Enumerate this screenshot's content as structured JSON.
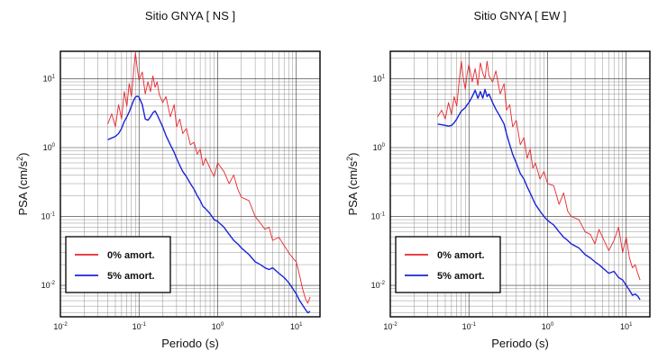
{
  "chart_data": [
    {
      "type": "line",
      "title": "Sitio GNYA [ NS ]",
      "xlabel": "Periodo (s)",
      "ylabel": "PSA (cm/s",
      "ylabel_sup": "2",
      "ylabel_end": ")",
      "x_scale": "log",
      "y_scale": "log",
      "xlim": [
        0.01,
        20
      ],
      "ylim": [
        0.0035,
        25
      ],
      "x_ticks": [
        {
          "base": "10",
          "exp": "-2",
          "value": 0.01
        },
        {
          "base": "10",
          "exp": "-1",
          "value": 0.1
        },
        {
          "base": "10",
          "exp": "0",
          "value": 1
        },
        {
          "base": "10",
          "exp": "1",
          "value": 10
        }
      ],
      "y_ticks": [
        {
          "base": "10",
          "exp": "-2",
          "value": 0.01
        },
        {
          "base": "10",
          "exp": "-1",
          "value": 0.1
        },
        {
          "base": "10",
          "exp": "0",
          "value": 1
        },
        {
          "base": "10",
          "exp": "1",
          "value": 10
        }
      ],
      "grid": true,
      "legend_position": "bottom-left",
      "series": [
        {
          "name": "0% amort.",
          "color": "#e8262b",
          "x": [
            0.04,
            0.045,
            0.05,
            0.055,
            0.06,
            0.065,
            0.07,
            0.075,
            0.08,
            0.085,
            0.09,
            0.095,
            0.1,
            0.11,
            0.12,
            0.13,
            0.14,
            0.15,
            0.16,
            0.17,
            0.18,
            0.2,
            0.22,
            0.25,
            0.28,
            0.3,
            0.33,
            0.36,
            0.4,
            0.45,
            0.5,
            0.55,
            0.6,
            0.65,
            0.7,
            0.8,
            0.9,
            1.0,
            1.2,
            1.4,
            1.6,
            1.8,
            2.0,
            2.5,
            3.0,
            3.5,
            4.0,
            4.5,
            5.0,
            6.0,
            7.0,
            8.0,
            9.0,
            10.0,
            11.0,
            12.0,
            13.0,
            14.0,
            15.0
          ],
          "y": [
            2.2,
            3.1,
            2.0,
            4.2,
            2.6,
            6.5,
            4.0,
            8.5,
            5.5,
            12.0,
            24.0,
            14.0,
            9.5,
            12.5,
            6.0,
            9.0,
            6.5,
            11.0,
            7.5,
            9.0,
            6.0,
            4.5,
            5.5,
            2.8,
            4.2,
            2.0,
            2.6,
            1.6,
            1.9,
            1.1,
            1.2,
            0.8,
            0.95,
            0.55,
            0.7,
            0.5,
            0.38,
            0.6,
            0.45,
            0.3,
            0.4,
            0.25,
            0.19,
            0.17,
            0.1,
            0.08,
            0.065,
            0.07,
            0.045,
            0.05,
            0.038,
            0.03,
            0.025,
            0.022,
            0.014,
            0.009,
            0.0065,
            0.0055,
            0.0068
          ]
        },
        {
          "name": "5% amort.",
          "color": "#1a24d6",
          "x": [
            0.04,
            0.045,
            0.05,
            0.055,
            0.06,
            0.065,
            0.07,
            0.075,
            0.08,
            0.085,
            0.09,
            0.095,
            0.1,
            0.11,
            0.12,
            0.13,
            0.14,
            0.15,
            0.16,
            0.17,
            0.18,
            0.2,
            0.22,
            0.25,
            0.28,
            0.3,
            0.33,
            0.36,
            0.4,
            0.45,
            0.5,
            0.55,
            0.6,
            0.65,
            0.7,
            0.8,
            0.9,
            1.0,
            1.2,
            1.4,
            1.6,
            1.8,
            2.0,
            2.5,
            3.0,
            3.5,
            4.0,
            4.5,
            5.0,
            6.0,
            7.0,
            8.0,
            9.0,
            10.0,
            11.0,
            12.0,
            13.0,
            14.0,
            15.0
          ],
          "y": [
            1.3,
            1.38,
            1.45,
            1.6,
            1.9,
            2.4,
            2.8,
            3.3,
            4.0,
            4.8,
            5.4,
            5.6,
            5.4,
            4.2,
            2.6,
            2.5,
            2.8,
            3.2,
            3.4,
            3.0,
            2.6,
            2.0,
            1.5,
            1.1,
            0.85,
            0.7,
            0.55,
            0.45,
            0.38,
            0.3,
            0.25,
            0.2,
            0.17,
            0.14,
            0.13,
            0.11,
            0.09,
            0.085,
            0.07,
            0.055,
            0.045,
            0.04,
            0.035,
            0.028,
            0.022,
            0.02,
            0.018,
            0.017,
            0.018,
            0.015,
            0.013,
            0.011,
            0.009,
            0.0075,
            0.006,
            0.0052,
            0.0045,
            0.004,
            0.0042
          ]
        }
      ]
    },
    {
      "type": "line",
      "title": "Sitio GNYA [ EW ]",
      "xlabel": "Periodo (s)",
      "ylabel": "PSA (cm/s",
      "ylabel_sup": "2",
      "ylabel_end": ")",
      "x_scale": "log",
      "y_scale": "log",
      "xlim": [
        0.01,
        20
      ],
      "ylim": [
        0.0035,
        25
      ],
      "x_ticks": [
        {
          "base": "10",
          "exp": "-2",
          "value": 0.01
        },
        {
          "base": "10",
          "exp": "-1",
          "value": 0.1
        },
        {
          "base": "10",
          "exp": "0",
          "value": 1
        },
        {
          "base": "10",
          "exp": "1",
          "value": 10
        }
      ],
      "y_ticks": [
        {
          "base": "10",
          "exp": "-2",
          "value": 0.01
        },
        {
          "base": "10",
          "exp": "-1",
          "value": 0.1
        },
        {
          "base": "10",
          "exp": "0",
          "value": 1
        },
        {
          "base": "10",
          "exp": "1",
          "value": 10
        }
      ],
      "grid": true,
      "legend_position": "bottom-left",
      "series": [
        {
          "name": "0% amort.",
          "color": "#e8262b",
          "x": [
            0.04,
            0.045,
            0.05,
            0.055,
            0.06,
            0.065,
            0.07,
            0.075,
            0.08,
            0.085,
            0.09,
            0.095,
            0.1,
            0.11,
            0.12,
            0.13,
            0.14,
            0.15,
            0.16,
            0.17,
            0.18,
            0.2,
            0.22,
            0.25,
            0.28,
            0.3,
            0.33,
            0.36,
            0.4,
            0.45,
            0.5,
            0.55,
            0.6,
            0.65,
            0.7,
            0.8,
            0.9,
            1.0,
            1.2,
            1.4,
            1.6,
            1.8,
            2.0,
            2.5,
            3.0,
            3.5,
            4.0,
            4.5,
            5.0,
            6.0,
            7.0,
            8.0,
            9.0,
            10.0,
            11.0,
            12.0,
            13.0,
            14.0,
            15.0
          ],
          "y": [
            2.8,
            3.5,
            2.6,
            4.5,
            3.0,
            5.5,
            4.0,
            9.0,
            18.0,
            10.0,
            7.0,
            12.0,
            16.0,
            9.0,
            14.0,
            8.0,
            17.0,
            12.0,
            10.0,
            18.0,
            11.0,
            9.0,
            13.0,
            6.0,
            8.5,
            3.5,
            4.2,
            2.0,
            2.5,
            1.1,
            1.4,
            0.7,
            0.95,
            0.5,
            0.6,
            0.35,
            0.45,
            0.3,
            0.28,
            0.15,
            0.22,
            0.12,
            0.1,
            0.09,
            0.06,
            0.055,
            0.04,
            0.065,
            0.05,
            0.032,
            0.045,
            0.07,
            0.03,
            0.05,
            0.025,
            0.018,
            0.02,
            0.015,
            0.012
          ]
        },
        {
          "name": "5% amort.",
          "color": "#1a24d6",
          "x": [
            0.04,
            0.045,
            0.05,
            0.055,
            0.06,
            0.065,
            0.07,
            0.075,
            0.08,
            0.085,
            0.09,
            0.095,
            0.1,
            0.11,
            0.12,
            0.13,
            0.14,
            0.15,
            0.16,
            0.17,
            0.18,
            0.2,
            0.22,
            0.25,
            0.28,
            0.3,
            0.33,
            0.36,
            0.4,
            0.45,
            0.5,
            0.55,
            0.6,
            0.65,
            0.7,
            0.8,
            0.9,
            1.0,
            1.2,
            1.4,
            1.6,
            1.8,
            2.0,
            2.5,
            3.0,
            3.5,
            4.0,
            4.5,
            5.0,
            6.0,
            7.0,
            8.0,
            9.0,
            10.0,
            11.0,
            12.0,
            13.0,
            14.0,
            15.0
          ],
          "y": [
            2.2,
            2.15,
            2.1,
            2.05,
            2.1,
            2.3,
            2.6,
            3.0,
            3.4,
            3.6,
            3.8,
            4.2,
            4.5,
            5.5,
            6.8,
            5.2,
            6.5,
            5.2,
            7.0,
            5.5,
            6.0,
            4.5,
            3.6,
            2.8,
            2.2,
            1.6,
            1.1,
            0.8,
            0.6,
            0.42,
            0.35,
            0.27,
            0.22,
            0.18,
            0.15,
            0.12,
            0.1,
            0.088,
            0.075,
            0.06,
            0.05,
            0.045,
            0.04,
            0.035,
            0.028,
            0.025,
            0.022,
            0.02,
            0.018,
            0.015,
            0.016,
            0.013,
            0.012,
            0.01,
            0.0085,
            0.0072,
            0.0075,
            0.007,
            0.0062
          ]
        }
      ]
    }
  ]
}
